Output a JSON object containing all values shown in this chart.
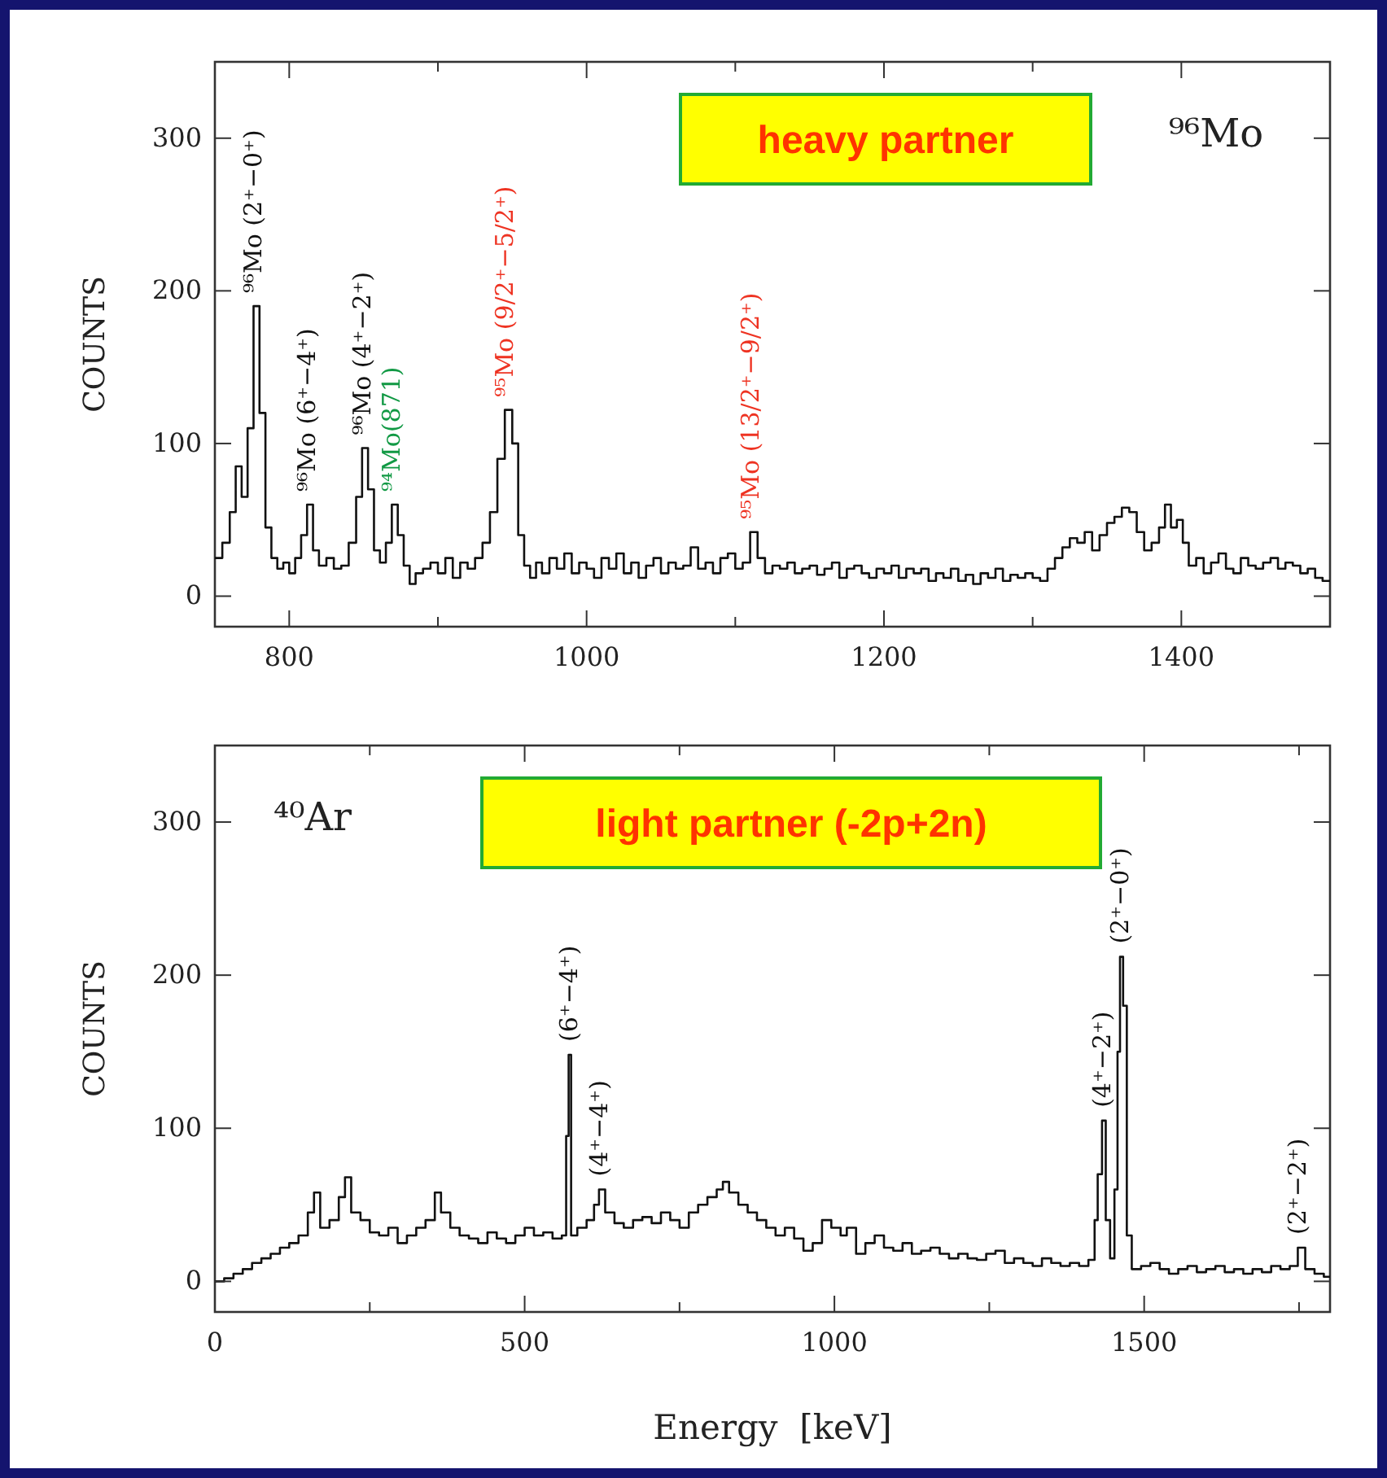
{
  "chart_data": [
    {
      "type": "step",
      "ylabel": "COUNTS",
      "xlim": [
        750,
        1500
      ],
      "ylim": [
        -20,
        350
      ],
      "xticks": [
        800,
        {
          "value": 900,
          "label": null
        },
        1000,
        {
          "value": 1100,
          "label": null
        },
        1200,
        {
          "value": 1300,
          "label": null
        },
        1400
      ],
      "yticks": [
        0,
        100,
        200,
        300
      ],
      "tick_labels": true,
      "annotations": [
        "⁹⁶Mo",
        "heavy partner",
        {
          "text": "⁹⁶Mo (2⁺−0⁺)",
          "x": 776,
          "y": 190
        },
        {
          "text": "⁹⁶Mo (6⁺−4⁺)",
          "x": 812,
          "y": 60
        },
        {
          "text": "⁹⁶Mo (4⁺−2⁺)",
          "x": 849,
          "y": 97
        },
        {
          "text": "⁹⁴Mo(871)",
          "x": 869,
          "y": 60
        },
        {
          "text": "⁹⁵Mo (9/2⁺−5/2⁺)",
          "x": 945,
          "y": 122
        },
        {
          "text": "⁹⁵Mo (13/2⁺−9/2⁺)",
          "x": 1110,
          "y": 42
        }
      ],
      "x": [
        750,
        755,
        760,
        764,
        768,
        772,
        776,
        780,
        784,
        788,
        792,
        796,
        800,
        804,
        808,
        812,
        816,
        820,
        825,
        830,
        835,
        840,
        845,
        849,
        853,
        857,
        861,
        865,
        869,
        873,
        877,
        881,
        885,
        890,
        895,
        900,
        905,
        910,
        915,
        920,
        925,
        930,
        935,
        940,
        945,
        950,
        954,
        958,
        962,
        966,
        970,
        975,
        980,
        985,
        990,
        995,
        1000,
        1005,
        1010,
        1015,
        1020,
        1025,
        1030,
        1035,
        1040,
        1045,
        1050,
        1055,
        1060,
        1065,
        1070,
        1075,
        1080,
        1085,
        1090,
        1095,
        1100,
        1105,
        1110,
        1115,
        1120,
        1125,
        1130,
        1135,
        1140,
        1145,
        1150,
        1155,
        1160,
        1165,
        1170,
        1175,
        1180,
        1185,
        1190,
        1195,
        1200,
        1205,
        1210,
        1215,
        1220,
        1225,
        1230,
        1235,
        1240,
        1245,
        1250,
        1255,
        1260,
        1265,
        1270,
        1275,
        1280,
        1285,
        1290,
        1295,
        1300,
        1305,
        1310,
        1315,
        1320,
        1325,
        1330,
        1335,
        1340,
        1345,
        1350,
        1355,
        1360,
        1365,
        1370,
        1375,
        1380,
        1385,
        1389,
        1393,
        1397,
        1401,
        1405,
        1410,
        1415,
        1420,
        1425,
        1430,
        1435,
        1440,
        1445,
        1450,
        1455,
        1460,
        1465,
        1470,
        1475,
        1480,
        1485,
        1490,
        1495,
        1500
      ],
      "values": [
        25,
        35,
        55,
        85,
        65,
        110,
        190,
        120,
        45,
        25,
        18,
        22,
        15,
        25,
        40,
        60,
        30,
        20,
        25,
        18,
        20,
        35,
        65,
        97,
        70,
        30,
        22,
        35,
        60,
        40,
        20,
        8,
        15,
        18,
        22,
        15,
        25,
        12,
        22,
        18,
        25,
        35,
        55,
        90,
        122,
        100,
        40,
        20,
        12,
        22,
        15,
        25,
        18,
        28,
        15,
        22,
        18,
        12,
        25,
        18,
        28,
        15,
        22,
        12,
        20,
        25,
        15,
        22,
        18,
        20,
        32,
        18,
        22,
        15,
        25,
        28,
        18,
        22,
        42,
        25,
        15,
        20,
        18,
        22,
        15,
        18,
        20,
        14,
        18,
        22,
        12,
        18,
        20,
        15,
        12,
        18,
        15,
        20,
        12,
        18,
        15,
        18,
        10,
        15,
        12,
        18,
        10,
        14,
        8,
        15,
        12,
        18,
        10,
        14,
        12,
        15,
        12,
        10,
        18,
        25,
        32,
        38,
        35,
        42,
        30,
        40,
        48,
        52,
        58,
        55,
        42,
        30,
        35,
        45,
        60,
        45,
        50,
        35,
        20,
        25,
        15,
        22,
        28,
        18,
        15,
        25,
        20,
        18,
        22,
        25,
        18,
        22,
        20,
        15,
        18,
        12,
        10,
        10
      ],
      "color": "#111111"
    },
    {
      "type": "step",
      "xlabel": "Energy  [keV]",
      "ylabel": "COUNTS",
      "xlim": [
        0,
        1800
      ],
      "ylim": [
        -20,
        350
      ],
      "xticks": [
        0,
        {
          "value": 250,
          "label": null
        },
        500,
        {
          "value": 750,
          "label": null
        },
        1000,
        {
          "value": 1250,
          "label": null
        },
        1500,
        {
          "value": 1750,
          "label": null
        }
      ],
      "yticks": [
        0,
        100,
        200,
        300
      ],
      "tick_labels": true,
      "annotations": [
        "⁴⁰Ar",
        "light partner (-2p+2n)",
        {
          "text": "(6⁺−4⁺)",
          "x": 571,
          "y": 148
        },
        {
          "text": "(4⁺−4⁺)",
          "x": 620,
          "y": 60
        },
        {
          "text": "(4⁺−2⁺)",
          "x": 1432,
          "y": 105
        },
        {
          "text": "(2⁺−0⁺)",
          "x": 1461,
          "y": 212
        },
        {
          "text": "(2⁺−2⁺)",
          "x": 1748,
          "y": 22
        }
      ],
      "x": [
        0,
        15,
        30,
        45,
        60,
        75,
        90,
        105,
        120,
        135,
        150,
        160,
        170,
        185,
        200,
        210,
        220,
        235,
        250,
        265,
        280,
        295,
        310,
        325,
        340,
        355,
        365,
        380,
        395,
        410,
        425,
        440,
        455,
        470,
        485,
        500,
        515,
        530,
        545,
        560,
        567,
        571,
        575,
        585,
        600,
        612,
        620,
        630,
        645,
        660,
        675,
        690,
        705,
        720,
        735,
        750,
        765,
        780,
        795,
        810,
        820,
        830,
        845,
        860,
        875,
        890,
        905,
        920,
        935,
        950,
        965,
        980,
        995,
        1010,
        1020,
        1035,
        1050,
        1065,
        1080,
        1095,
        1110,
        1125,
        1140,
        1155,
        1170,
        1185,
        1200,
        1215,
        1230,
        1245,
        1260,
        1275,
        1290,
        1305,
        1320,
        1335,
        1350,
        1365,
        1380,
        1395,
        1410,
        1420,
        1425,
        1432,
        1438,
        1445,
        1452,
        1457,
        1461,
        1466,
        1472,
        1480,
        1495,
        1510,
        1525,
        1540,
        1555,
        1570,
        1585,
        1600,
        1615,
        1630,
        1645,
        1660,
        1675,
        1690,
        1705,
        1720,
        1735,
        1748,
        1760,
        1775,
        1790,
        1800
      ],
      "values": [
        0,
        2,
        5,
        8,
        12,
        15,
        18,
        22,
        25,
        30,
        45,
        58,
        35,
        40,
        55,
        68,
        45,
        40,
        32,
        30,
        35,
        25,
        30,
        35,
        40,
        58,
        45,
        35,
        30,
        28,
        25,
        32,
        28,
        25,
        30,
        35,
        30,
        32,
        28,
        30,
        95,
        148,
        30,
        35,
        40,
        50,
        60,
        45,
        38,
        35,
        40,
        42,
        38,
        45,
        40,
        35,
        45,
        50,
        55,
        60,
        65,
        58,
        50,
        45,
        40,
        35,
        30,
        35,
        28,
        20,
        25,
        40,
        35,
        30,
        35,
        18,
        25,
        30,
        22,
        20,
        25,
        18,
        20,
        22,
        18,
        15,
        18,
        15,
        14,
        18,
        20,
        12,
        15,
        12,
        10,
        15,
        12,
        10,
        12,
        10,
        14,
        40,
        70,
        105,
        40,
        15,
        60,
        150,
        212,
        180,
        30,
        8,
        10,
        12,
        8,
        5,
        8,
        10,
        6,
        8,
        10,
        6,
        8,
        5,
        8,
        6,
        10,
        8,
        10,
        22,
        8,
        5,
        3,
        3
      ],
      "color": "#111111"
    }
  ]
}
